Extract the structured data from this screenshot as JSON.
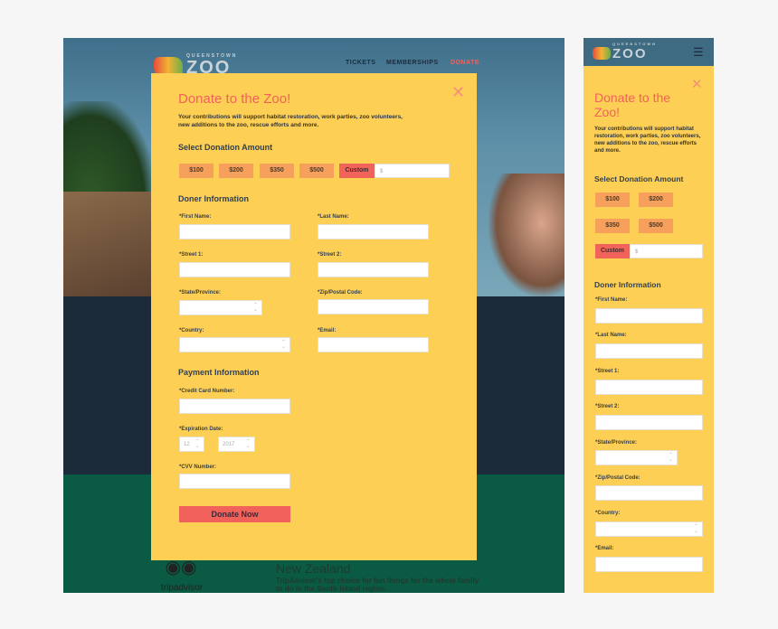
{
  "desktop": {
    "logo": {
      "small": "QUEENSTOWN",
      "big": "ZOO"
    },
    "nav": [
      "TICKETS",
      "MEMBERSHIPS",
      "DONATE"
    ],
    "background_text": {
      "heading": "New Zealand",
      "body": "TripAdvisor's top choice for fun things for the whole family to do in the South Island region.",
      "badge": "tripadvisor"
    }
  },
  "mobile": {
    "logo": {
      "small": "QUEENSTOWN",
      "big": "ZOO"
    },
    "menu_icon": "hamburger-icon"
  },
  "modal": {
    "title": "Donate to the Zoo!",
    "description": "Your contributions will support habitat restoration, work parties, zoo volunteers, new additions to the zoo, rescue efforts and more.",
    "close_icon": "close-x-icon",
    "amount_heading": "Select Donation Amount",
    "amounts": [
      "$100",
      "$200",
      "$350",
      "$500"
    ],
    "custom_label": "Custom",
    "custom_placeholder": "$",
    "donor_heading": "Doner Information",
    "labels": {
      "first": "*First Name:",
      "last": "*Last Name:",
      "street1": "*Street 1:",
      "street2": "*Street 2:",
      "state": "*State/Province:",
      "zip": "*Zip/Postal Code:",
      "country": "*Country:",
      "email": "*Email:"
    },
    "payment_heading": "Payment Information",
    "payment_labels": {
      "card": "*Credit Card Number:",
      "exp": "*Expiration Date:",
      "cvv": "*CVV Number:"
    },
    "exp_month": "12",
    "exp_year": "2017",
    "submit": "Donate Now"
  },
  "colors": {
    "modal": "#fecf55",
    "accent": "#f1625a",
    "amount": "#f6a05c",
    "navy": "#1c2b3a",
    "green": "#0b5a44"
  }
}
